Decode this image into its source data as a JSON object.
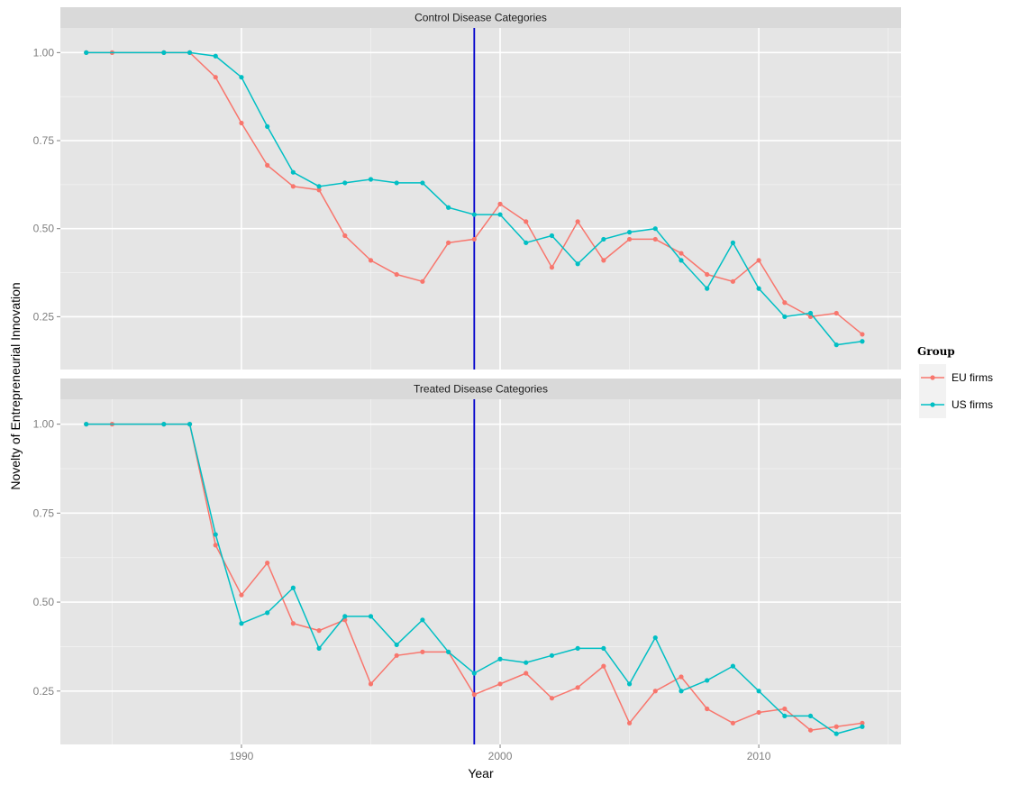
{
  "chart_data": {
    "type": "line",
    "facet_by": "panel",
    "xlabel": "Year",
    "ylabel": "Novelty of Entrepreneurial Innovation",
    "xlim": [
      1983,
      2015.5
    ],
    "x_ticks": [
      1990,
      2000,
      2010
    ],
    "x_tick_labels": [
      "1990",
      "2000",
      "2010"
    ],
    "y_ticks": [
      0.25,
      0.5,
      0.75,
      1.0
    ],
    "y_tick_labels": [
      "0.25",
      "0.50",
      "0.75",
      "1.00"
    ],
    "grid": true,
    "vline": {
      "x": 1999,
      "color": "#0000cc"
    },
    "legend": {
      "title": "Group",
      "position": "right",
      "entries": [
        {
          "label": "EU firms",
          "color": "#f8766d"
        },
        {
          "label": "US firms",
          "color": "#00bfc4"
        }
      ]
    },
    "panels": [
      {
        "title": "Control Disease Categories",
        "ylim": [
          0.1,
          1.07
        ],
        "series": [
          {
            "name": "EU firms",
            "color": "#f8766d",
            "x": [
              1984,
              1985,
              1987,
              1988,
              1989,
              1990,
              1991,
              1992,
              1993,
              1994,
              1995,
              1996,
              1997,
              1998,
              1999,
              2000,
              2001,
              2002,
              2003,
              2004,
              2005,
              2006,
              2007,
              2008,
              2009,
              2010,
              2011,
              2012,
              2013,
              2014
            ],
            "y": [
              1.0,
              1.0,
              1.0,
              1.0,
              0.93,
              0.8,
              0.68,
              0.62,
              0.61,
              0.48,
              0.41,
              0.37,
              0.35,
              0.46,
              0.47,
              0.57,
              0.52,
              0.39,
              0.52,
              0.41,
              0.47,
              0.47,
              0.43,
              0.37,
              0.35,
              0.41,
              0.29,
              0.25,
              0.26,
              0.2
            ]
          },
          {
            "name": "US firms",
            "color": "#00bfc4",
            "x": [
              1984,
              1987,
              1988,
              1989,
              1990,
              1991,
              1992,
              1993,
              1994,
              1995,
              1996,
              1997,
              1998,
              1999,
              2000,
              2001,
              2002,
              2003,
              2004,
              2005,
              2006,
              2007,
              2008,
              2009,
              2010,
              2011,
              2012,
              2013,
              2014
            ],
            "y": [
              1.0,
              1.0,
              1.0,
              0.99,
              0.93,
              0.79,
              0.66,
              0.62,
              0.63,
              0.64,
              0.63,
              0.63,
              0.56,
              0.54,
              0.54,
              0.46,
              0.48,
              0.4,
              0.47,
              0.49,
              0.5,
              0.41,
              0.33,
              0.46,
              0.33,
              0.25,
              0.26,
              0.17,
              0.18
            ]
          }
        ]
      },
      {
        "title": "Treated Disease Categories",
        "ylim": [
          0.1,
          1.07
        ],
        "series": [
          {
            "name": "EU firms",
            "color": "#f8766d",
            "x": [
              1984,
              1985,
              1987,
              1988,
              1989,
              1990,
              1991,
              1992,
              1993,
              1994,
              1995,
              1996,
              1997,
              1998,
              1999,
              2000,
              2001,
              2002,
              2003,
              2004,
              2005,
              2006,
              2007,
              2008,
              2009,
              2010,
              2011,
              2012,
              2013,
              2014
            ],
            "y": [
              1.0,
              1.0,
              1.0,
              1.0,
              0.66,
              0.52,
              0.61,
              0.44,
              0.42,
              0.45,
              0.27,
              0.35,
              0.36,
              0.36,
              0.24,
              0.27,
              0.3,
              0.23,
              0.26,
              0.32,
              0.16,
              0.25,
              0.29,
              0.2,
              0.16,
              0.19,
              0.2,
              0.14,
              0.15,
              0.16
            ]
          },
          {
            "name": "US firms",
            "color": "#00bfc4",
            "x": [
              1984,
              1987,
              1988,
              1989,
              1990,
              1991,
              1992,
              1993,
              1994,
              1995,
              1996,
              1997,
              1998,
              1999,
              2000,
              2001,
              2002,
              2003,
              2004,
              2005,
              2006,
              2007,
              2008,
              2009,
              2010,
              2011,
              2012,
              2013,
              2014
            ],
            "y": [
              1.0,
              1.0,
              1.0,
              0.69,
              0.44,
              0.47,
              0.54,
              0.37,
              0.46,
              0.46,
              0.38,
              0.45,
              0.36,
              0.3,
              0.34,
              0.33,
              0.35,
              0.37,
              0.37,
              0.27,
              0.4,
              0.25,
              0.28,
              0.32,
              0.25,
              0.18,
              0.18,
              0.13,
              0.15
            ]
          }
        ]
      }
    ]
  }
}
